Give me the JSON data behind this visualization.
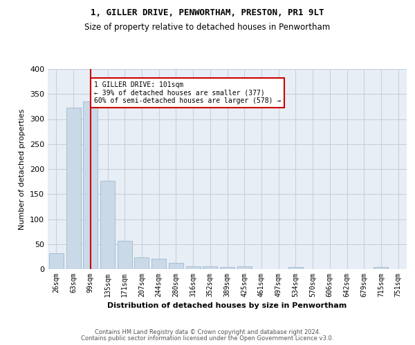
{
  "title_line1": "1, GILLER DRIVE, PENWORTHAM, PRESTON, PR1 9LT",
  "title_line2": "Size of property relative to detached houses in Penwortham",
  "xlabel": "Distribution of detached houses by size in Penwortham",
  "ylabel": "Number of detached properties",
  "footer_line1": "Contains HM Land Registry data © Crown copyright and database right 2024.",
  "footer_line2": "Contains public sector information licensed under the Open Government Licence v3.0.",
  "bar_labels": [
    "26sqm",
    "63sqm",
    "99sqm",
    "135sqm",
    "171sqm",
    "207sqm",
    "244sqm",
    "280sqm",
    "316sqm",
    "352sqm",
    "389sqm",
    "425sqm",
    "461sqm",
    "497sqm",
    "534sqm",
    "570sqm",
    "606sqm",
    "642sqm",
    "679sqm",
    "715sqm",
    "751sqm"
  ],
  "bar_values": [
    32,
    323,
    335,
    176,
    56,
    23,
    21,
    13,
    5,
    5,
    4,
    5,
    0,
    0,
    4,
    0,
    0,
    0,
    0,
    4,
    0
  ],
  "bar_color": "#c9d9e8",
  "bar_edgecolor": "#a0b8cc",
  "property_bin_index": 2,
  "vline_color": "#cc0000",
  "annotation_text": "1 GILLER DRIVE: 101sqm\n← 39% of detached houses are smaller (377)\n60% of semi-detached houses are larger (578) →",
  "annotation_box_color": "#ffffff",
  "annotation_box_edgecolor": "#cc0000",
  "ylim": [
    0,
    400
  ],
  "yticks": [
    0,
    50,
    100,
    150,
    200,
    250,
    300,
    350,
    400
  ],
  "background_color": "#ffffff",
  "grid_color": "#c8d0dc",
  "ax_facecolor": "#e8eef5"
}
